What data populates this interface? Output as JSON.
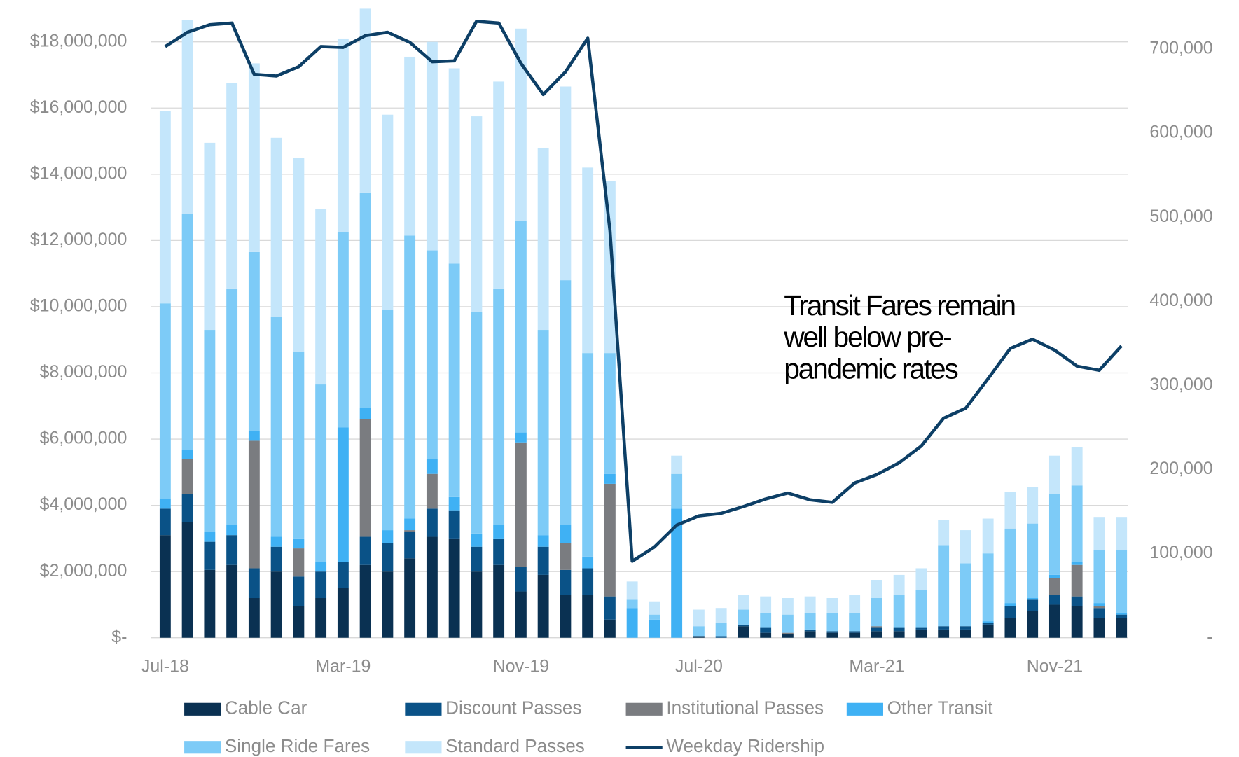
{
  "chart_data": {
    "type": "bar",
    "stacked": true,
    "grid": true,
    "annotation": [
      "Transit Fares remain",
      "well below pre-",
      "pandemic rates"
    ],
    "categories": [
      "Jul-18",
      null,
      null,
      null,
      null,
      null,
      null,
      null,
      "Mar-19",
      null,
      null,
      null,
      null,
      null,
      null,
      null,
      "Nov-19",
      null,
      null,
      null,
      null,
      null,
      null,
      null,
      "Jul-20",
      null,
      null,
      null,
      null,
      null,
      null,
      null,
      "Mar-21",
      null,
      null,
      null,
      null,
      null,
      null,
      null,
      "Nov-21",
      null,
      null,
      null
    ],
    "ylim": [
      0,
      19000000
    ],
    "yticks": [
      {
        "value": 0,
        "label": "$-"
      },
      {
        "value": 2000000,
        "label": "$2,000,000"
      },
      {
        "value": 4000000,
        "label": "$4,000,000"
      },
      {
        "value": 6000000,
        "label": "$6,000,000"
      },
      {
        "value": 8000000,
        "label": "$8,000,000"
      },
      {
        "value": 10000000,
        "label": "$10,000,000"
      },
      {
        "value": 12000000,
        "label": "$12,000,000"
      },
      {
        "value": 14000000,
        "label": "$14,000,000"
      },
      {
        "value": 16000000,
        "label": "$16,000,000"
      },
      {
        "value": 18000000,
        "label": "$18,000,000"
      }
    ],
    "y2lim": [
      0,
      748000
    ],
    "y2ticks": [
      {
        "value": 0,
        "label": "-"
      },
      {
        "value": 100000,
        "label": "100,000"
      },
      {
        "value": 200000,
        "label": "200,000"
      },
      {
        "value": 300000,
        "label": "300,000"
      },
      {
        "value": 400000,
        "label": "400,000"
      },
      {
        "value": 500000,
        "label": "500,000"
      },
      {
        "value": 600000,
        "label": "600,000"
      },
      {
        "value": 700000,
        "label": "700,000"
      }
    ],
    "series": [
      {
        "name": "Cable Car",
        "color": "#0a3152",
        "values": [
          3100000,
          3500000,
          2050000,
          2200000,
          1200000,
          2000000,
          950000,
          1200000,
          1500000,
          2200000,
          2000000,
          2400000,
          3050000,
          3000000,
          2000000,
          2200000,
          1400000,
          1900000,
          1300000,
          1300000,
          550000,
          0,
          0,
          0,
          50000,
          0,
          350000,
          150000,
          100000,
          200000,
          150000,
          150000,
          200000,
          200000,
          250000,
          250000,
          250000,
          400000,
          600000,
          800000,
          1000000,
          950000,
          600000,
          600000
        ]
      },
      {
        "name": "Discount Passes",
        "color": "#0a5287",
        "values": [
          800000,
          850000,
          850000,
          900000,
          900000,
          750000,
          900000,
          800000,
          800000,
          850000,
          850000,
          800000,
          850000,
          850000,
          750000,
          800000,
          750000,
          850000,
          750000,
          800000,
          700000,
          0,
          0,
          0,
          0,
          50000,
          50000,
          150000,
          0,
          50000,
          50000,
          50000,
          100000,
          100000,
          50000,
          100000,
          100000,
          50000,
          350000,
          350000,
          300000,
          300000,
          300000,
          100000
        ]
      },
      {
        "name": "Institutional Passes",
        "color": "#7a7c80",
        "values": [
          0,
          1050000,
          0,
          0,
          3850000,
          0,
          850000,
          0,
          0,
          3550000,
          0,
          50000,
          1050000,
          0,
          0,
          0,
          3750000,
          0,
          800000,
          0,
          3400000,
          0,
          0,
          0,
          0,
          0,
          0,
          0,
          50000,
          0,
          0,
          0,
          50000,
          0,
          0,
          0,
          0,
          0,
          0,
          0,
          500000,
          950000,
          50000,
          0
        ]
      },
      {
        "name": "Other Transit",
        "color": "#3fb1f4",
        "values": [
          300000,
          270000,
          300000,
          300000,
          300000,
          300000,
          300000,
          300000,
          4050000,
          350000,
          400000,
          350000,
          450000,
          400000,
          400000,
          400000,
          300000,
          350000,
          550000,
          350000,
          300000,
          900000,
          550000,
          3900000,
          0,
          0,
          0,
          0,
          0,
          0,
          0,
          0,
          0,
          0,
          0,
          0,
          0,
          50000,
          100000,
          50000,
          100000,
          100000,
          100000,
          50000
        ]
      },
      {
        "name": "Single Ride Fares",
        "color": "#7dcbf7",
        "values": [
          5900000,
          7130000,
          6100000,
          7150000,
          5400000,
          6650000,
          5650000,
          5350000,
          5900000,
          6500000,
          6650000,
          8550000,
          6300000,
          7050000,
          6700000,
          7150000,
          6400000,
          6200000,
          7400000,
          6150000,
          3650000,
          250000,
          150000,
          1050000,
          300000,
          400000,
          450000,
          450000,
          550000,
          500000,
          550000,
          550000,
          850000,
          1000000,
          1150000,
          2450000,
          1900000,
          2050000,
          2250000,
          2250000,
          2450000,
          2300000,
          1600000,
          1900000
        ]
      },
      {
        "name": "Standard Passes",
        "color": "#c4e6fb",
        "values": [
          5800000,
          5860000,
          5650000,
          6200000,
          5700000,
          5400000,
          5850000,
          5300000,
          5850000,
          5550000,
          5900000,
          5400000,
          6300000,
          5900000,
          5900000,
          6250000,
          5800000,
          5500000,
          5850000,
          5600000,
          5200000,
          550000,
          400000,
          550000,
          500000,
          450000,
          450000,
          500000,
          500000,
          500000,
          450000,
          550000,
          550000,
          600000,
          650000,
          750000,
          1000000,
          1050000,
          1100000,
          1100000,
          1150000,
          1150000,
          1000000,
          1000000
        ]
      },
      {
        "name": "Weekday Ridership",
        "color": "#0d3f66",
        "type": "line",
        "axis": "y2",
        "values": [
          703000,
          720000,
          729000,
          731000,
          670000,
          668000,
          679000,
          703000,
          702000,
          716000,
          720000,
          708000,
          685000,
          686000,
          733000,
          731000,
          683000,
          646000,
          673000,
          713000,
          484000,
          91000,
          108000,
          134000,
          145000,
          148000,
          156000,
          165000,
          172000,
          164000,
          161000,
          184000,
          194000,
          208000,
          228000,
          261000,
          273000,
          308000,
          344000,
          355000,
          342000,
          323000,
          318000,
          347000
        ]
      }
    ]
  }
}
